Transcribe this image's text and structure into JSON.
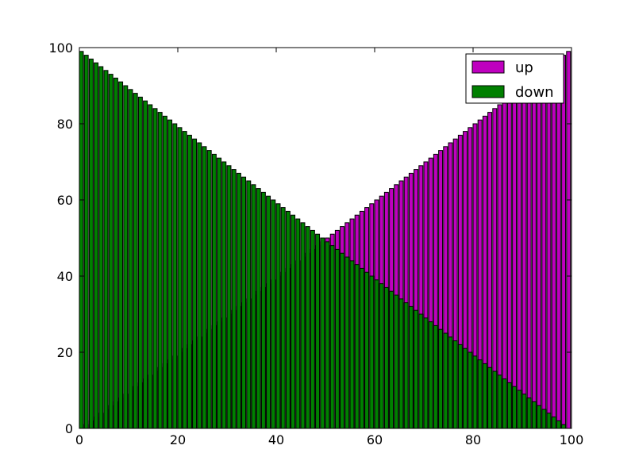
{
  "chart_data": {
    "type": "bar",
    "title": "",
    "xlabel": "",
    "ylabel": "",
    "xlim": [
      0,
      100
    ],
    "ylim": [
      0,
      100
    ],
    "x_ticks": [
      "0",
      "20",
      "40",
      "60",
      "80",
      "100"
    ],
    "y_ticks": [
      "0",
      "20",
      "40",
      "60",
      "80",
      "100"
    ],
    "grid": false,
    "overlap": "up series drawn first; down series drawn on top of it",
    "x": [
      0,
      1,
      2,
      3,
      4,
      5,
      6,
      7,
      8,
      9,
      10,
      11,
      12,
      13,
      14,
      15,
      16,
      17,
      18,
      19,
      20,
      21,
      22,
      23,
      24,
      25,
      26,
      27,
      28,
      29,
      30,
      31,
      32,
      33,
      34,
      35,
      36,
      37,
      38,
      39,
      40,
      41,
      42,
      43,
      44,
      45,
      46,
      47,
      48,
      49,
      50,
      51,
      52,
      53,
      54,
      55,
      56,
      57,
      58,
      59,
      60,
      61,
      62,
      63,
      64,
      65,
      66,
      67,
      68,
      69,
      70,
      71,
      72,
      73,
      74,
      75,
      76,
      77,
      78,
      79,
      80,
      81,
      82,
      83,
      84,
      85,
      86,
      87,
      88,
      89,
      90,
      91,
      92,
      93,
      94,
      95,
      96,
      97,
      98,
      99
    ],
    "series": [
      {
        "name": "up",
        "color": "#bf00bf",
        "values": [
          0,
          1,
          2,
          3,
          4,
          5,
          6,
          7,
          8,
          9,
          10,
          11,
          12,
          13,
          14,
          15,
          16,
          17,
          18,
          19,
          20,
          21,
          22,
          23,
          24,
          25,
          26,
          27,
          28,
          29,
          30,
          31,
          32,
          33,
          34,
          35,
          36,
          37,
          38,
          39,
          40,
          41,
          42,
          43,
          44,
          45,
          46,
          47,
          48,
          49,
          50,
          51,
          52,
          53,
          54,
          55,
          56,
          57,
          58,
          59,
          60,
          61,
          62,
          63,
          64,
          65,
          66,
          67,
          68,
          69,
          70,
          71,
          72,
          73,
          74,
          75,
          76,
          77,
          78,
          79,
          80,
          81,
          82,
          83,
          84,
          85,
          86,
          87,
          88,
          89,
          90,
          91,
          92,
          93,
          94,
          95,
          96,
          97,
          98,
          99
        ]
      },
      {
        "name": "down",
        "color": "#008000",
        "values": [
          99,
          98,
          97,
          96,
          95,
          94,
          93,
          92,
          91,
          90,
          89,
          88,
          87,
          86,
          85,
          84,
          83,
          82,
          81,
          80,
          79,
          78,
          77,
          76,
          75,
          74,
          73,
          72,
          71,
          70,
          69,
          68,
          67,
          66,
          65,
          64,
          63,
          62,
          61,
          60,
          59,
          58,
          57,
          56,
          55,
          54,
          53,
          52,
          51,
          50,
          49,
          48,
          47,
          46,
          45,
          44,
          43,
          42,
          41,
          40,
          39,
          38,
          37,
          36,
          35,
          34,
          33,
          32,
          31,
          30,
          29,
          28,
          27,
          26,
          25,
          24,
          23,
          22,
          21,
          20,
          19,
          18,
          17,
          16,
          15,
          14,
          13,
          12,
          11,
          10,
          9,
          8,
          7,
          6,
          5,
          4,
          3,
          2,
          1,
          0
        ]
      }
    ],
    "legend": {
      "position": "top-right",
      "entries": [
        {
          "label": "up",
          "color": "#bf00bf"
        },
        {
          "label": "down",
          "color": "#008000"
        }
      ]
    }
  }
}
